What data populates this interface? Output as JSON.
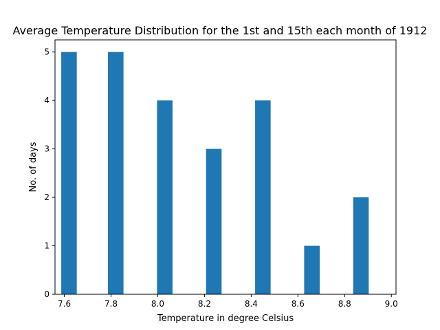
{
  "chart_data": {
    "type": "bar",
    "title": "Average Temperature Distribution for the 1st and 15th each month of 1912",
    "xlabel": "Temperature in degree Celsius",
    "ylabel": "No. of days",
    "xlim": [
      7.56,
      9.02
    ],
    "ylim": [
      0,
      5.25
    ],
    "xticks": [
      "7.6",
      "7.8",
      "8.0",
      "8.2",
      "8.4",
      "8.6",
      "8.8",
      "9.0"
    ],
    "xtick_values": [
      7.6,
      7.8,
      8.0,
      8.2,
      8.4,
      8.6,
      8.8,
      9.0
    ],
    "yticks": [
      "0",
      "1",
      "2",
      "3",
      "4",
      "5"
    ],
    "ytick_values": [
      0,
      1,
      2,
      3,
      4,
      5
    ],
    "bin_width": 0.0665,
    "bins": [
      {
        "x": 7.62,
        "value": 5
      },
      {
        "x": 7.82,
        "value": 5
      },
      {
        "x": 8.03,
        "value": 4
      },
      {
        "x": 8.24,
        "value": 3
      },
      {
        "x": 8.45,
        "value": 4
      },
      {
        "x": 8.66,
        "value": 1
      },
      {
        "x": 8.87,
        "value": 2
      }
    ],
    "bar_color": "#1f77b4",
    "grid": false
  }
}
